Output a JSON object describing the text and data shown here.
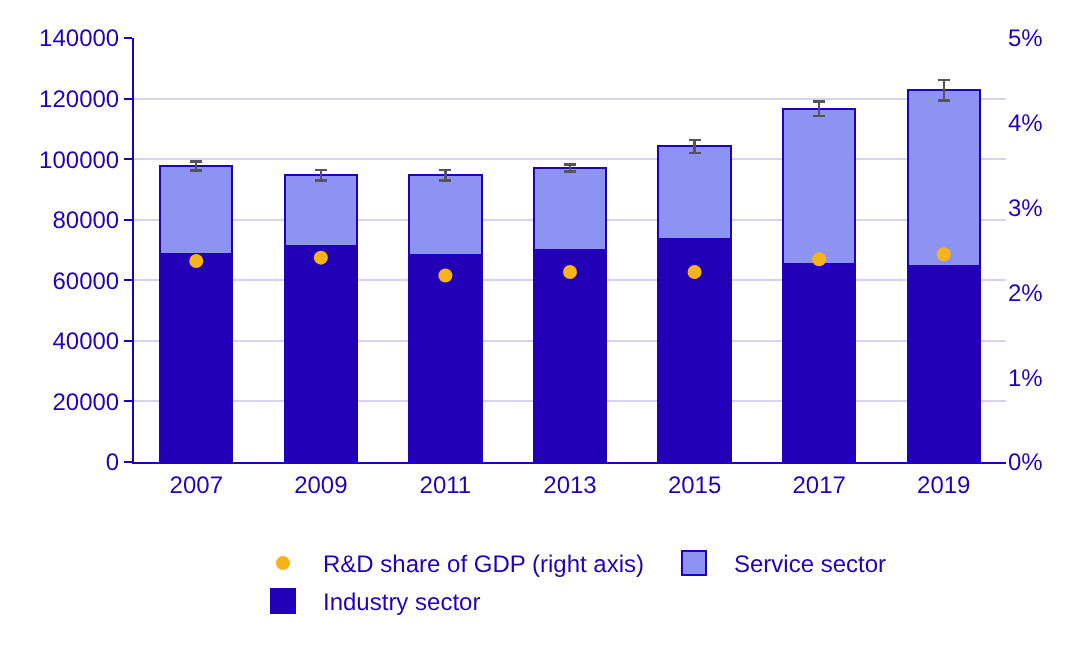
{
  "chart_data": {
    "type": "bar",
    "stacked": true,
    "categories": [
      "2007",
      "2009",
      "2011",
      "2013",
      "2015",
      "2017",
      "2019"
    ],
    "series": [
      {
        "name": "Industry sector",
        "color": "#2200b8",
        "values": [
          68800,
          71200,
          68200,
          70000,
          73600,
          65300,
          64700
        ]
      },
      {
        "name": "Service sector",
        "color": "#8c93f2",
        "values": [
          28900,
          23500,
          26500,
          27100,
          30600,
          51400,
          58100
        ],
        "errors": [
          1500,
          1800,
          1800,
          1200,
          2100,
          2400,
          3400
        ]
      },
      {
        "name": "R&D share of GDP (right axis)",
        "type": "scatter",
        "axis": "y2",
        "color": "#f7b318",
        "values": [
          2.37,
          2.41,
          2.2,
          2.24,
          2.24,
          2.39,
          2.45
        ]
      }
    ],
    "ylim": [
      0,
      140000
    ],
    "yticks": [
      0,
      20000,
      40000,
      60000,
      80000,
      100000,
      120000,
      140000
    ],
    "y2lim": [
      0,
      5
    ],
    "y2ticks": [
      {
        "value": 0,
        "label": "0%"
      },
      {
        "value": 1,
        "label": "1%"
      },
      {
        "value": 2,
        "label": "2%"
      },
      {
        "value": 3,
        "label": "3%"
      },
      {
        "value": 4,
        "label": "4%"
      },
      {
        "value": 5,
        "label": "5%"
      }
    ],
    "grid": "y",
    "legend": "bottom",
    "marker": "circle"
  }
}
